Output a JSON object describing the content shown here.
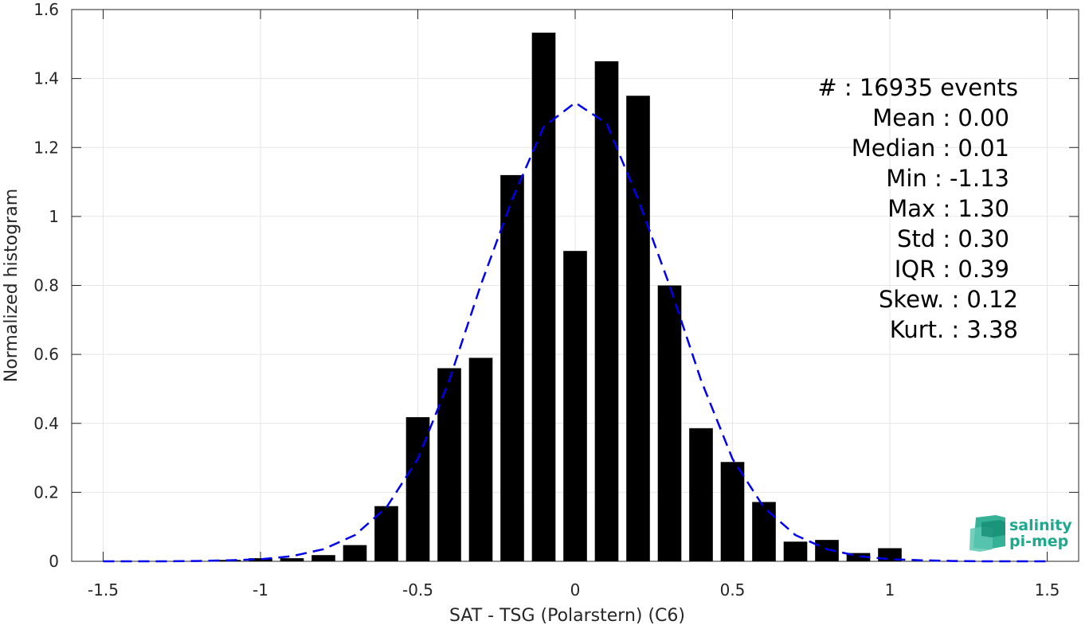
{
  "chart_data": {
    "type": "bar",
    "xlabel": "SAT - TSG (Polarstern) (C6)",
    "ylabel": "Normalized histogram",
    "xlim": [
      -1.6,
      1.6
    ],
    "ylim": [
      0,
      1.6
    ],
    "xticks": [
      -1.5,
      -1,
      -0.5,
      0,
      0.5,
      1,
      1.5
    ],
    "xtick_labels": [
      "-1.5",
      "-1",
      "-0.5",
      "0",
      "0.5",
      "1",
      "1.5"
    ],
    "yticks": [
      0,
      0.2,
      0.4,
      0.6,
      0.8,
      1,
      1.2,
      1.4,
      1.6
    ],
    "ytick_labels": [
      "0",
      "0.2",
      "0.4",
      "0.6",
      "0.8",
      "1",
      "1.2",
      "1.4",
      "1.6"
    ],
    "grid": true,
    "bar_width": 0.075,
    "bar_color": "#000000",
    "bars": {
      "x": [
        -1.1,
        -1.0,
        -0.9,
        -0.8,
        -0.7,
        -0.6,
        -0.5,
        -0.4,
        -0.3,
        -0.2,
        -0.1,
        0.0,
        0.1,
        0.2,
        0.3,
        0.4,
        0.5,
        0.6,
        0.7,
        0.8,
        0.9,
        1.0
      ],
      "values": [
        0.004,
        0.009,
        0.009,
        0.018,
        0.047,
        0.16,
        0.418,
        0.56,
        0.59,
        1.12,
        1.533,
        0.9,
        1.45,
        1.35,
        0.8,
        0.386,
        0.288,
        0.172,
        0.057,
        0.062,
        0.024,
        0.038
      ]
    },
    "fit_curve": {
      "style": "dashed",
      "color": "#0000ee",
      "x": [
        -1.5,
        -1.4,
        -1.3,
        -1.2,
        -1.1,
        -1.0,
        -0.9,
        -0.8,
        -0.7,
        -0.6,
        -0.5,
        -0.4,
        -0.3,
        -0.2,
        -0.1,
        0.0,
        0.1,
        0.2,
        0.3,
        0.4,
        0.5,
        0.6,
        0.7,
        0.8,
        0.9,
        1.0,
        1.1,
        1.2,
        1.3,
        1.4,
        1.5
      ],
      "y": [
        0.0,
        0.0,
        0.0,
        0.001,
        0.003,
        0.006,
        0.015,
        0.035,
        0.076,
        0.156,
        0.297,
        0.525,
        0.801,
        1.05,
        1.26,
        1.33,
        1.27,
        1.05,
        0.8,
        0.525,
        0.297,
        0.156,
        0.076,
        0.035,
        0.015,
        0.006,
        0.003,
        0.001,
        0.0,
        0.0,
        0.0
      ]
    },
    "stats_lines": [
      "#  : 16935 events",
      "Mean : 0.00",
      "Median : 0.01",
      "Min : -1.13",
      "Max : 1.30",
      "Std : 0.30",
      "IQR : 0.39",
      "Skew. : 0.12",
      "Kurt. : 3.38"
    ]
  },
  "logo": {
    "line1": "salinity",
    "line2": "pi-mep",
    "color": "#1fa88c"
  }
}
